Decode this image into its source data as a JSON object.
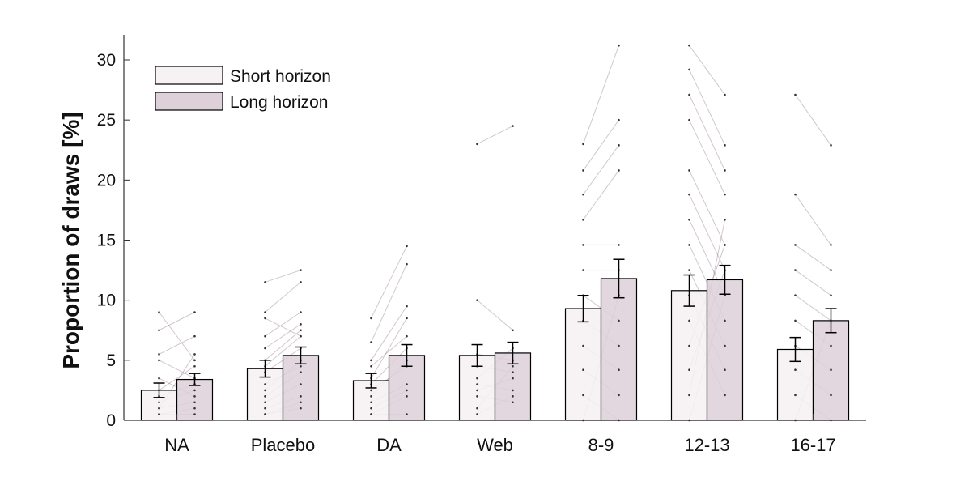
{
  "chart_data": {
    "type": "bar",
    "title": "",
    "xlabel": "",
    "ylabel": "Proportion of draws [%]",
    "ylim": [
      0,
      32
    ],
    "yticks": [
      0,
      5,
      10,
      15,
      20,
      25,
      30
    ],
    "grid": false,
    "legend_position": "top-left",
    "categories": [
      "NA",
      "Placebo",
      "DA",
      "Web",
      "8-9",
      "12-13",
      "16-17"
    ],
    "series": [
      {
        "name": "Short horizon",
        "values": [
          2.5,
          4.3,
          3.3,
          5.4,
          9.3,
          10.8,
          5.9
        ],
        "error": [
          0.6,
          0.7,
          0.6,
          0.9,
          1.1,
          1.3,
          1.0
        ],
        "color": "#f6f1f2"
      },
      {
        "name": "Long horizon",
        "values": [
          3.4,
          5.4,
          5.4,
          5.6,
          11.8,
          11.7,
          8.3
        ],
        "error": [
          0.5,
          0.7,
          0.9,
          0.9,
          1.6,
          1.2,
          1.0
        ],
        "color": "#ddd0d9"
      }
    ],
    "individual_pairs": [
      [
        [
          9.0,
          5.0
        ],
        [
          7.5,
          9.0
        ],
        [
          5.5,
          7.0
        ],
        [
          5.0,
          3.5
        ],
        [
          3.5,
          2.0
        ],
        [
          2.5,
          4.5
        ],
        [
          2.0,
          3.0
        ],
        [
          1.5,
          2.5
        ],
        [
          1.0,
          5.5
        ],
        [
          1.0,
          1.5
        ],
        [
          0.5,
          1.0
        ],
        [
          0.5,
          0.5
        ]
      ],
      [
        [
          11.5,
          12.5
        ],
        [
          9.0,
          11.5
        ],
        [
          8.5,
          7.0
        ],
        [
          7.0,
          9.0
        ],
        [
          6.0,
          8.0
        ],
        [
          5.0,
          7.5
        ],
        [
          4.5,
          7.0
        ],
        [
          4.0,
          6.0
        ],
        [
          3.0,
          4.5
        ],
        [
          2.5,
          5.0
        ],
        [
          2.0,
          4.0
        ],
        [
          1.5,
          3.0
        ],
        [
          1.0,
          2.0
        ],
        [
          0.5,
          1.5
        ],
        [
          0.5,
          1.0
        ]
      ],
      [
        [
          8.5,
          14.5
        ],
        [
          6.5,
          13.0
        ],
        [
          5.0,
          9.5
        ],
        [
          4.5,
          7.0
        ],
        [
          3.5,
          8.5
        ],
        [
          3.0,
          6.0
        ],
        [
          2.5,
          4.5
        ],
        [
          2.0,
          5.0
        ],
        [
          1.5,
          3.0
        ],
        [
          1.0,
          2.5
        ],
        [
          0.5,
          2.0
        ],
        [
          0.5,
          0.5
        ]
      ],
      [
        [
          23.0,
          24.5
        ],
        [
          10.0,
          7.5
        ],
        [
          5.5,
          5.0
        ],
        [
          4.5,
          4.0
        ],
        [
          3.5,
          6.0
        ],
        [
          3.0,
          2.5
        ],
        [
          2.5,
          3.5
        ],
        [
          2.0,
          1.5
        ],
        [
          1.0,
          4.5
        ],
        [
          0.5,
          2.0
        ]
      ],
      [
        [
          23.0,
          31.2
        ],
        [
          20.8,
          25.0
        ],
        [
          18.8,
          22.9
        ],
        [
          16.7,
          20.8
        ],
        [
          14.6,
          14.6
        ],
        [
          12.5,
          12.5
        ],
        [
          10.4,
          8.3
        ],
        [
          8.3,
          6.2
        ],
        [
          6.2,
          4.2
        ],
        [
          4.2,
          2.1
        ],
        [
          2.1,
          0.0
        ],
        [
          0.0,
          10.4
        ]
      ],
      [
        [
          31.2,
          27.1
        ],
        [
          29.2,
          22.9
        ],
        [
          27.1,
          20.8
        ],
        [
          25.0,
          18.8
        ],
        [
          20.8,
          14.6
        ],
        [
          18.8,
          12.5
        ],
        [
          16.7,
          10.4
        ],
        [
          14.6,
          8.3
        ],
        [
          12.5,
          6.2
        ],
        [
          10.4,
          4.2
        ],
        [
          8.3,
          2.1
        ],
        [
          6.2,
          14.6
        ],
        [
          4.2,
          12.5
        ],
        [
          2.1,
          16.7
        ],
        [
          0.0,
          10.4
        ]
      ],
      [
        [
          27.1,
          22.9
        ],
        [
          18.8,
          14.6
        ],
        [
          14.6,
          12.5
        ],
        [
          12.5,
          10.4
        ],
        [
          10.4,
          8.3
        ],
        [
          8.3,
          6.2
        ],
        [
          6.2,
          4.2
        ],
        [
          4.2,
          2.1
        ],
        [
          2.1,
          0.0
        ],
        [
          0.0,
          8.3
        ]
      ]
    ]
  },
  "legend": {
    "short_label": "Short horizon",
    "long_label": "Long horizon"
  }
}
